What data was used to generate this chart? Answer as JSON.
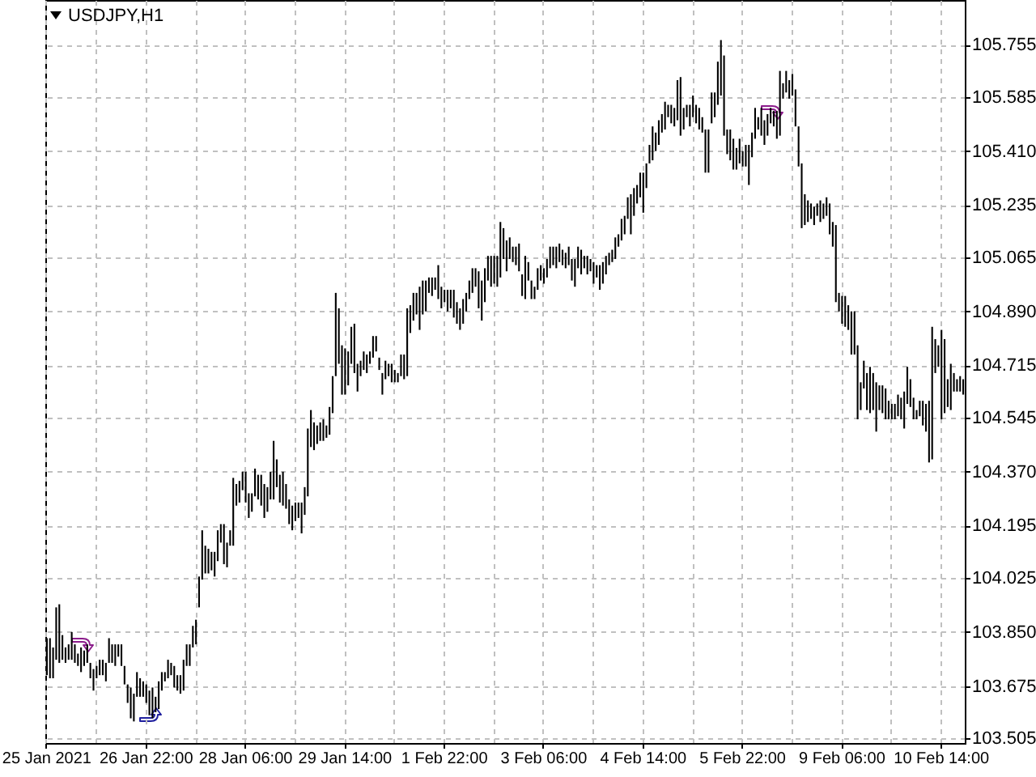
{
  "chart_data": {
    "type": "bar",
    "title": "USDJPY,H1",
    "categories": [
      "25 Jan 2021",
      null,
      null,
      null,
      null,
      null,
      null,
      null,
      null,
      null,
      null,
      null,
      null,
      null,
      null,
      null,
      null,
      null,
      null,
      null,
      null,
      null,
      null,
      null,
      null,
      null,
      null,
      null,
      null,
      null,
      null,
      null,
      "26 Jan 22:00",
      null,
      null,
      null,
      null,
      null,
      null,
      null,
      null,
      null,
      null,
      null,
      null,
      null,
      null,
      null,
      null,
      null,
      null,
      null,
      null,
      null,
      null,
      null,
      null,
      null,
      null,
      null,
      null,
      null,
      null,
      null,
      "28 Jan 06:00",
      null,
      null,
      null,
      null,
      null,
      null,
      null,
      null,
      null,
      null,
      null,
      null,
      null,
      null,
      null,
      null,
      null,
      null,
      null,
      null,
      null,
      null,
      null,
      null,
      null,
      null,
      null,
      null,
      null,
      null,
      null,
      "29 Jan 14:00",
      null,
      null,
      null,
      null,
      null,
      null,
      null,
      null,
      null,
      null,
      null,
      null,
      null,
      null,
      null,
      null,
      null,
      null,
      null,
      null,
      null,
      null,
      null,
      null,
      null,
      null,
      null,
      null,
      null,
      null,
      null,
      "1 Feb 22:00",
      null,
      null,
      null,
      null,
      null,
      null,
      null,
      null,
      null,
      null,
      null,
      null,
      null,
      null,
      null,
      null,
      null,
      null,
      null,
      null,
      null,
      null,
      null,
      null,
      null,
      null,
      null,
      null,
      null,
      null,
      null,
      "3 Feb 06:00",
      null,
      null,
      null,
      null,
      null,
      null,
      null,
      null,
      null,
      null,
      null,
      null,
      null,
      null,
      null,
      null,
      null,
      null,
      null,
      null,
      null,
      null,
      null,
      null,
      null,
      null,
      null,
      null,
      null,
      null,
      null,
      "4 Feb 14:00",
      null,
      null,
      null,
      null,
      null,
      null,
      null,
      null,
      null,
      null,
      null,
      null,
      null,
      null,
      null,
      null,
      null,
      null,
      null,
      null,
      null,
      null,
      null,
      null,
      null,
      null,
      null,
      null,
      null,
      null,
      null,
      "5 Feb 22:00",
      null,
      null,
      null,
      null,
      null,
      null,
      null,
      null,
      null,
      null,
      null,
      null,
      null,
      null,
      null,
      null,
      null,
      null,
      null,
      null,
      null,
      null,
      null,
      null,
      null,
      null,
      null,
      null,
      null,
      null,
      null,
      "9 Feb 06:00",
      null,
      null,
      null,
      null,
      null,
      null,
      null,
      null,
      null,
      null,
      null,
      null,
      null,
      null,
      null,
      null,
      null,
      null,
      null,
      null,
      null,
      null,
      null,
      null,
      null,
      null,
      null,
      null,
      null,
      null,
      null,
      "10 Feb 14:00",
      null,
      null,
      null,
      null,
      null,
      null,
      null
    ],
    "base": [
      103.71,
      103.7,
      103.7,
      103.76,
      103.75,
      103.76,
      103.75,
      103.76,
      103.76,
      103.75,
      103.74,
      103.72,
      103.74,
      103.75,
      103.7,
      103.66,
      103.7,
      103.71,
      103.71,
      103.69,
      103.75,
      103.75,
      103.74,
      103.77,
      103.74,
      103.68,
      103.62,
      103.57,
      103.56,
      103.64,
      103.64,
      103.64,
      103.62,
      103.58,
      103.57,
      103.59,
      103.6,
      103.66,
      103.69,
      103.7,
      103.71,
      103.67,
      103.66,
      103.65,
      103.66,
      103.74,
      103.74,
      103.8,
      103.81,
      103.93,
      104.02,
      104.04,
      104.04,
      104.05,
      104.03,
      104.08,
      104.14,
      104.07,
      104.06,
      104.13,
      104.13,
      104.26,
      104.27,
      104.31,
      104.27,
      104.22,
      104.24,
      104.29,
      104.28,
      104.26,
      104.22,
      104.24,
      104.28,
      104.28,
      104.32,
      104.27,
      104.26,
      104.25,
      104.2,
      104.18,
      104.21,
      104.22,
      104.17,
      104.23,
      104.29,
      104.45,
      104.44,
      104.46,
      104.47,
      104.47,
      104.48,
      104.49,
      104.56,
      104.68,
      104.72,
      104.62,
      104.62,
      104.65,
      104.72,
      104.69,
      104.63,
      104.68,
      104.7,
      104.69,
      104.72,
      104.74,
      104.76,
      104.7,
      104.62,
      104.67,
      104.68,
      104.66,
      104.66,
      104.66,
      104.68,
      104.67,
      104.68,
      104.82,
      104.86,
      104.88,
      104.83,
      104.88,
      104.89,
      104.95,
      104.94,
      104.96,
      104.93,
      104.9,
      104.92,
      104.89,
      104.9,
      104.87,
      104.85,
      104.83,
      104.85,
      104.89,
      104.93,
      104.95,
      104.97,
      104.9,
      104.86,
      104.92,
      104.99,
      104.97,
      104.98,
      104.97,
      105.0,
      105.06,
      105.02,
      105.06,
      105.05,
      105.04,
      105.02,
      104.94,
      104.93,
      104.99,
      104.93,
      104.93,
      104.96,
      104.99,
      104.98,
      105.0,
      105.03,
      105.04,
      105.03,
      105.05,
      105.04,
      105.03,
      105.04,
      104.99,
      104.97,
      105.03,
      105.01,
      105.03,
      105.01,
      105.02,
      104.98,
      105.0,
      104.96,
      104.98,
      105.01,
      105.04,
      105.05,
      105.06,
      105.1,
      105.12,
      105.14,
      105.19,
      105.14,
      105.2,
      105.24,
      105.26,
      105.21,
      105.29,
      105.37,
      105.38,
      105.41,
      105.43,
      105.47,
      105.48,
      105.52,
      105.5,
      105.49,
      105.51,
      105.46,
      105.48,
      105.52,
      105.49,
      105.52,
      105.5,
      105.48,
      105.47,
      105.34,
      105.34,
      105.5,
      105.52,
      105.56,
      105.59,
      105.46,
      105.4,
      105.38,
      105.35,
      105.35,
      105.37,
      105.36,
      105.36,
      105.3,
      105.39,
      105.45,
      105.48,
      105.46,
      105.43,
      105.46,
      105.5,
      105.49,
      105.45,
      105.46,
      105.58,
      105.6,
      105.58,
      105.59,
      105.49,
      105.36,
      105.16,
      105.17,
      105.18,
      105.19,
      105.17,
      105.2,
      105.18,
      105.19,
      105.2,
      105.14,
      105.1,
      104.92,
      104.89,
      104.85,
      104.84,
      104.83,
      104.75,
      104.75,
      104.54,
      104.57,
      104.64,
      104.57,
      104.56,
      104.57,
      104.5,
      104.57,
      104.56,
      104.54,
      104.54,
      104.54,
      104.54,
      104.55,
      104.54,
      104.51,
      104.59,
      104.58,
      104.54,
      104.54,
      104.55,
      104.52,
      104.5,
      104.4,
      104.41,
      104.69,
      104.71,
      104.54,
      104.56,
      104.58,
      104.57,
      104.63,
      104.63,
      104.63,
      104.62
    ],
    "values": [
      0.12,
      0.13,
      0.1,
      0.17,
      0.19,
      0.08,
      0.05,
      0.05,
      0.09,
      0.06,
      0.04,
      0.08,
      0.05,
      0.06,
      0.05,
      0.07,
      0.04,
      0.05,
      0.05,
      0.06,
      0.08,
      0.06,
      0.07,
      0.04,
      0.07,
      0.06,
      0.06,
      0.1,
      0.09,
      0.08,
      0.06,
      0.05,
      0.06,
      0.08,
      0.1,
      0.05,
      0.09,
      0.06,
      0.03,
      0.06,
      0.04,
      0.07,
      0.05,
      0.06,
      0.1,
      0.07,
      0.07,
      0.07,
      0.08,
      0.1,
      0.16,
      0.09,
      0.08,
      0.06,
      0.08,
      0.1,
      0.06,
      0.13,
      0.08,
      0.05,
      0.22,
      0.07,
      0.07,
      0.06,
      0.1,
      0.08,
      0.06,
      0.09,
      0.08,
      0.1,
      0.11,
      0.08,
      0.09,
      0.19,
      0.09,
      0.09,
      0.11,
      0.08,
      0.08,
      0.08,
      0.06,
      0.05,
      0.1,
      0.09,
      0.22,
      0.12,
      0.09,
      0.06,
      0.06,
      0.07,
      0.04,
      0.09,
      0.12,
      0.27,
      0.18,
      0.16,
      0.15,
      0.11,
      0.12,
      0.16,
      0.09,
      0.05,
      0.06,
      0.06,
      0.04,
      0.07,
      0.05,
      0.04,
      0.07,
      0.06,
      0.04,
      0.06,
      0.04,
      0.03,
      0.07,
      0.08,
      0.22,
      0.09,
      0.09,
      0.07,
      0.14,
      0.11,
      0.1,
      0.05,
      0.06,
      0.04,
      0.11,
      0.07,
      0.04,
      0.07,
      0.06,
      0.09,
      0.07,
      0.07,
      0.08,
      0.06,
      0.06,
      0.08,
      0.06,
      0.12,
      0.13,
      0.11,
      0.08,
      0.1,
      0.09,
      0.1,
      0.18,
      0.1,
      0.1,
      0.07,
      0.05,
      0.06,
      0.09,
      0.07,
      0.14,
      0.06,
      0.06,
      0.04,
      0.07,
      0.05,
      0.05,
      0.06,
      0.07,
      0.06,
      0.07,
      0.06,
      0.05,
      0.05,
      0.06,
      0.07,
      0.09,
      0.07,
      0.08,
      0.04,
      0.06,
      0.04,
      0.07,
      0.04,
      0.08,
      0.07,
      0.06,
      0.04,
      0.04,
      0.07,
      0.04,
      0.07,
      0.06,
      0.07,
      0.13,
      0.09,
      0.06,
      0.08,
      0.13,
      0.08,
      0.06,
      0.11,
      0.06,
      0.08,
      0.06,
      0.09,
      0.04,
      0.06,
      0.06,
      0.13,
      0.19,
      0.07,
      0.04,
      0.07,
      0.07,
      0.06,
      0.07,
      0.05,
      0.14,
      0.14,
      0.1,
      0.08,
      0.14,
      0.18,
      0.26,
      0.08,
      0.1,
      0.1,
      0.07,
      0.08,
      0.05,
      0.07,
      0.13,
      0.08,
      0.1,
      0.04,
      0.09,
      0.08,
      0.07,
      0.05,
      0.05,
      0.09,
      0.21,
      0.05,
      0.07,
      0.06,
      0.07,
      0.12,
      0.13,
      0.21,
      0.1,
      0.07,
      0.05,
      0.06,
      0.04,
      0.07,
      0.05,
      0.06,
      0.1,
      0.08,
      0.25,
      0.06,
      0.09,
      0.1,
      0.08,
      0.14,
      0.14,
      0.24,
      0.09,
      0.09,
      0.12,
      0.15,
      0.12,
      0.16,
      0.08,
      0.09,
      0.1,
      0.06,
      0.05,
      0.05,
      0.07,
      0.07,
      0.12,
      0.12,
      0.09,
      0.07,
      0.03,
      0.05,
      0.08,
      0.09,
      0.2,
      0.43,
      0.11,
      0.07,
      0.29,
      0.24,
      0.09,
      0.15,
      0.06,
      0.04,
      0.05,
      0.05
    ],
    "color": "#000000",
    "ylim": [
      103.49,
      105.9
    ],
    "yticks": [
      103.505,
      103.675,
      {
        "value": 103.85,
        "label": "103.850"
      },
      104.025,
      104.195,
      {
        "value": 104.37,
        "label": "104.370"
      },
      104.545,
      104.715,
      {
        "value": 104.89,
        "label": "104.890"
      },
      105.065,
      105.235,
      {
        "value": 105.41,
        "label": "105.410"
      },
      105.585,
      105.755
    ],
    "grid": true
  }
}
